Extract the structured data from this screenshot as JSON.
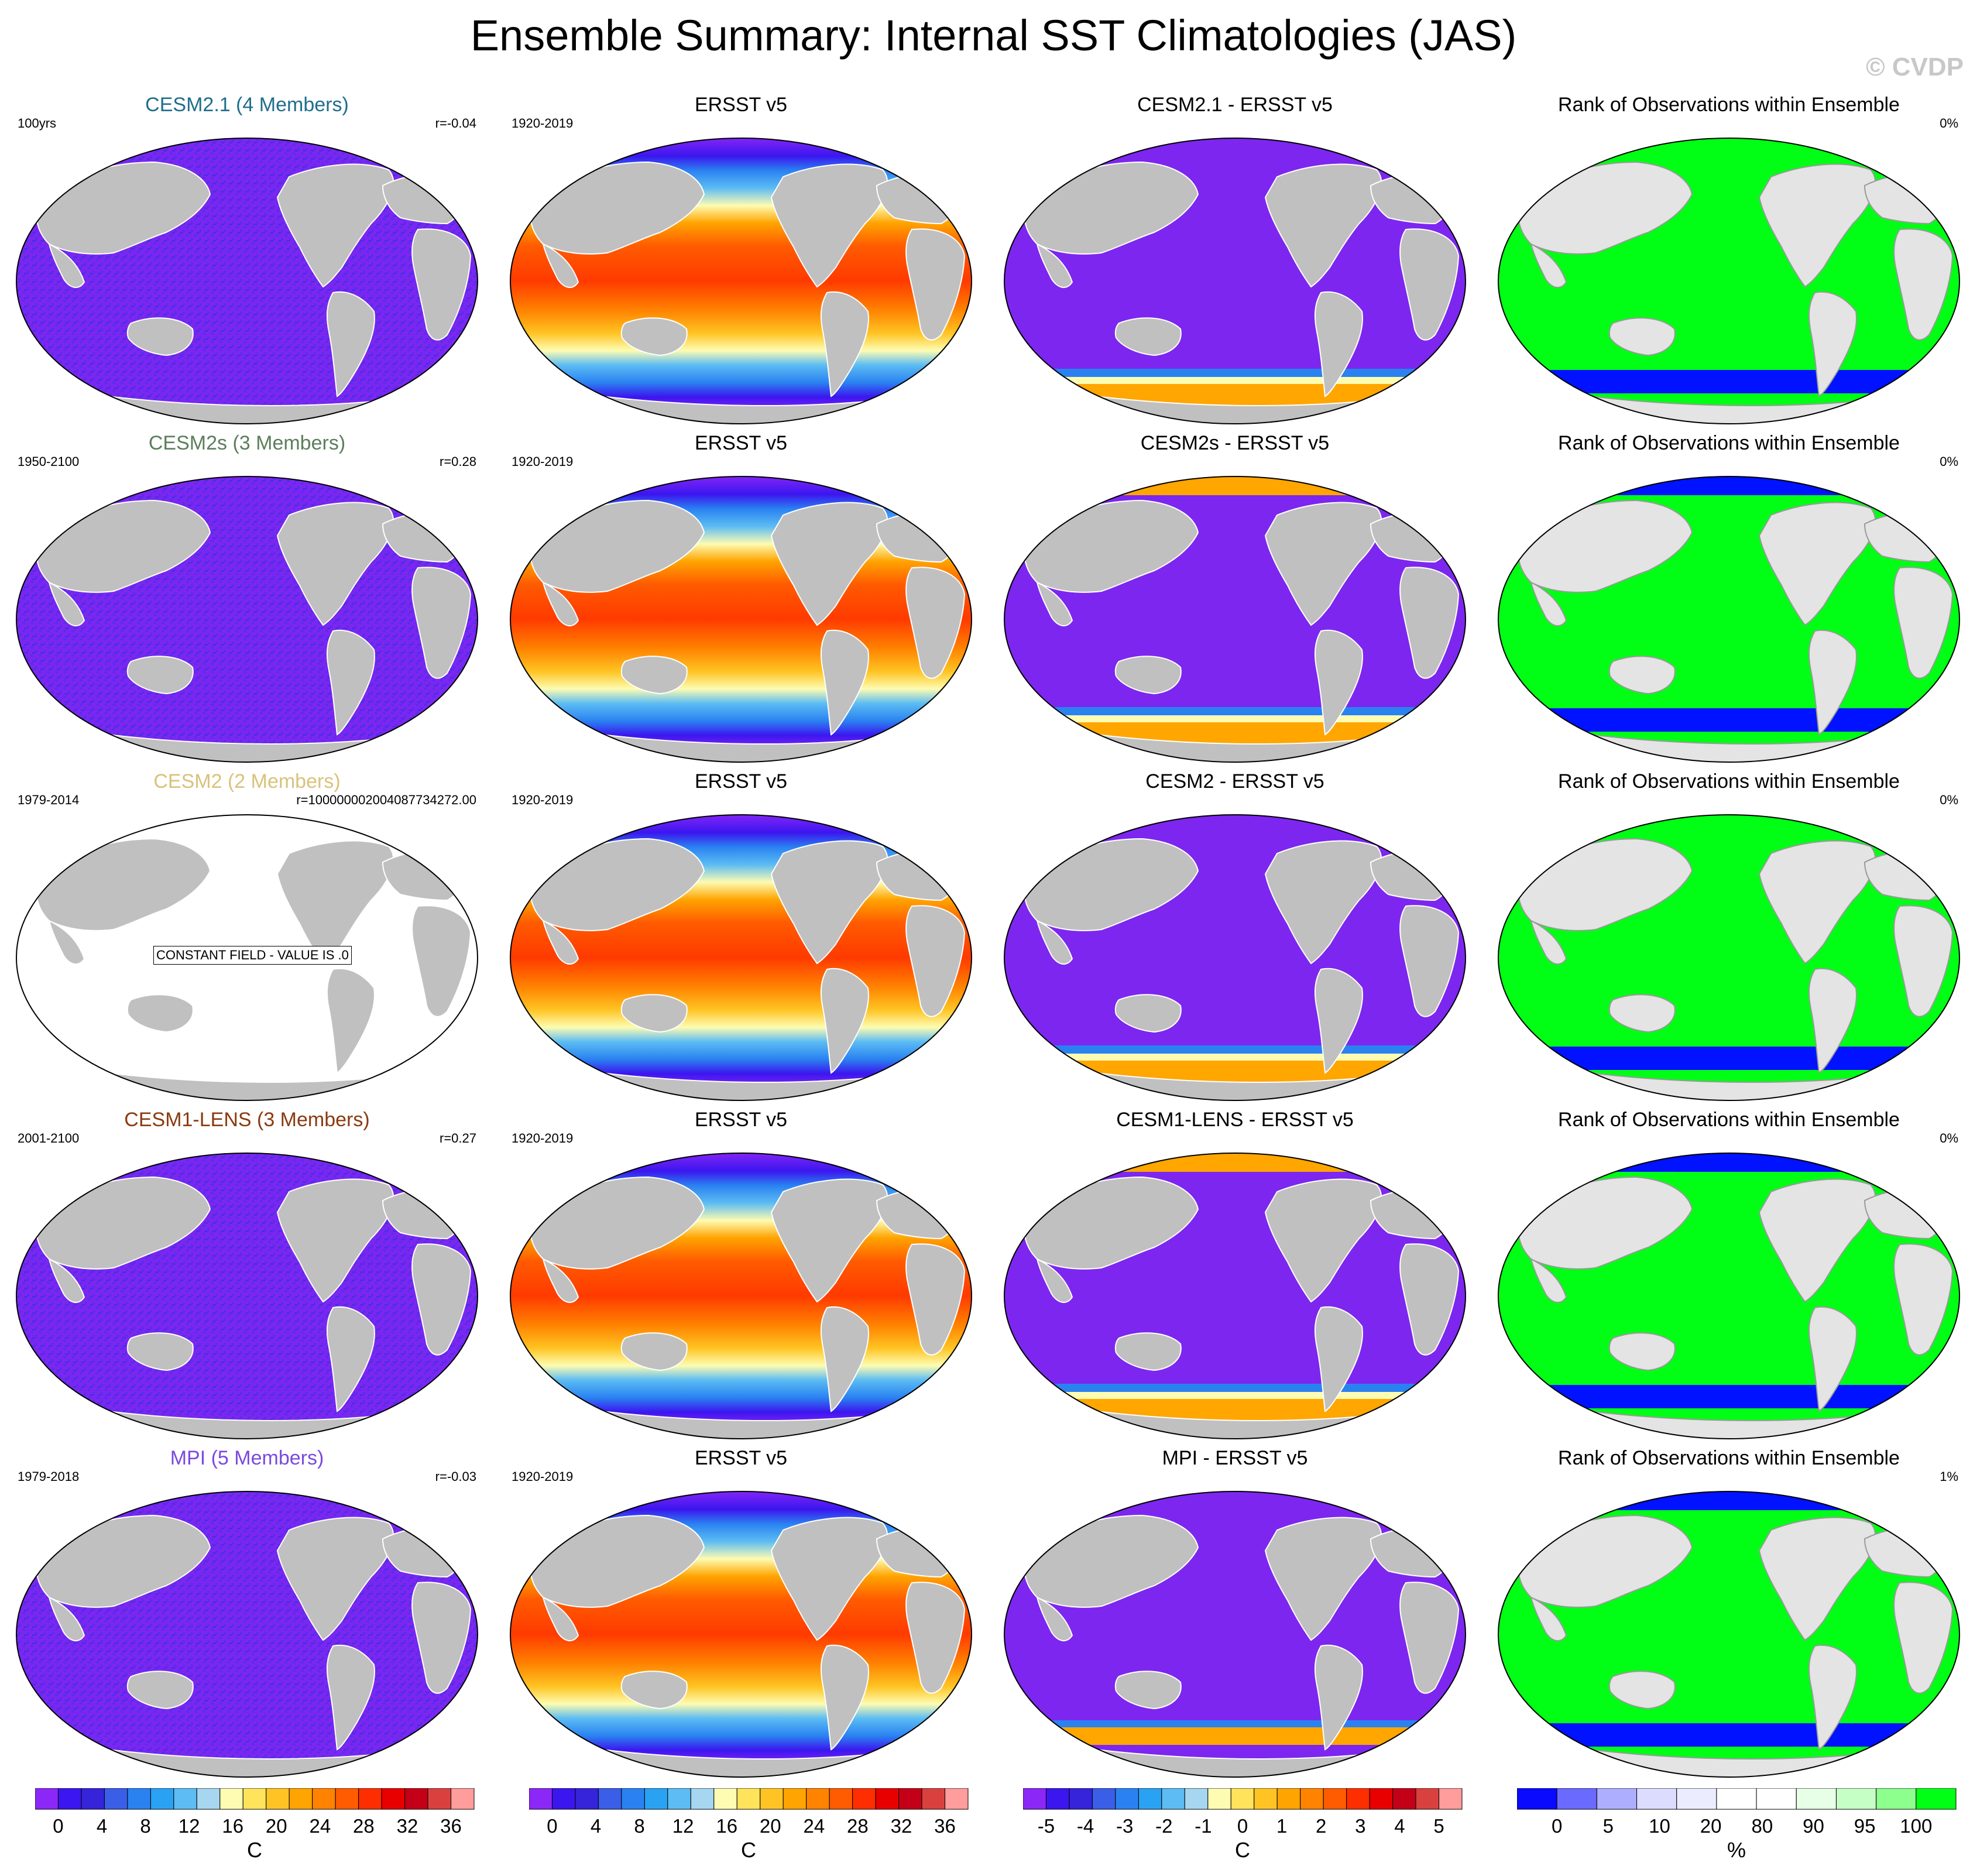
{
  "title": "Ensemble Summary: Internal SST Climatologies (JAS)",
  "watermark": "© CVDP",
  "colors": {
    "land": "#c0c0c0",
    "land_rank": "#e4e4e4",
    "purple": "#7d26f0",
    "purple_dark": "#5a2df0",
    "green": "#00ff14",
    "blue": "#0012ff",
    "orange": "#ffa600"
  },
  "rows": [
    {
      "model": {
        "title": "CESM2.1 (4 Members)",
        "title_color": "#1f6e8c",
        "left": "100yrs",
        "right": "r=-0.04",
        "style": "noise"
      },
      "obs": {
        "title": "ERSST v5",
        "left": "1920-2019"
      },
      "diff": {
        "title": "CESM2.1 - ERSST v5",
        "style": "diff_a"
      },
      "rank": {
        "title": "Rank of Observations within Ensemble",
        "right": "0%"
      }
    },
    {
      "model": {
        "title": "CESM2s (3 Members)",
        "title_color": "#5c7e5c",
        "left": "1950-2100",
        "right": "r=0.28",
        "style": "noise"
      },
      "obs": {
        "title": "ERSST v5",
        "left": "1920-2019"
      },
      "diff": {
        "title": "CESM2s - ERSST v5",
        "style": "diff_b"
      },
      "rank": {
        "title": "Rank of Observations within Ensemble",
        "right": "0%"
      }
    },
    {
      "model": {
        "title": "CESM2 (2 Members)",
        "title_color": "#d9c27a",
        "left": "1979-2014",
        "right": "r=100000002004087734272.00",
        "style": "constant",
        "note": "CONSTANT FIELD - VALUE IS .0"
      },
      "obs": {
        "title": "ERSST v5",
        "left": "1920-2019"
      },
      "diff": {
        "title": "CESM2 - ERSST v5",
        "style": "diff_a"
      },
      "rank": {
        "title": "Rank of Observations within Ensemble",
        "right": "0%"
      }
    },
    {
      "model": {
        "title": "CESM1-LENS (3 Members)",
        "title_color": "#8a3a10",
        "left": "2001-2100",
        "right": "r=0.27",
        "style": "noise"
      },
      "obs": {
        "title": "ERSST v5",
        "left": "1920-2019"
      },
      "diff": {
        "title": "CESM1-LENS - ERSST v5",
        "style": "diff_b"
      },
      "rank": {
        "title": "Rank of Observations within Ensemble",
        "right": "0%"
      }
    },
    {
      "model": {
        "title": "MPI (5 Members)",
        "title_color": "#7a4adf",
        "left": "1979-2018",
        "right": "r=-0.03",
        "style": "noise"
      },
      "obs": {
        "title": "ERSST v5",
        "left": "1920-2019"
      },
      "diff": {
        "title": "MPI - ERSST v5",
        "style": "diff_c"
      },
      "rank": {
        "title": "Rank of Observations within Ensemble",
        "right": "1%"
      }
    }
  ],
  "colorbars": [
    {
      "name": "sst",
      "colors": [
        "#8b27f7",
        "#3b16ef",
        "#3524d9",
        "#3a5ee7",
        "#2a82f1",
        "#2aa2f3",
        "#5cbcf3",
        "#a6d6f0",
        "#fdfcb2",
        "#ffe35a",
        "#ffc423",
        "#ffa400",
        "#ff8200",
        "#ff5b00",
        "#ff2e00",
        "#e80000",
        "#c30017",
        "#d9413f",
        "#ff9c9c"
      ],
      "labels": [
        "0",
        "4",
        "8",
        "12",
        "16",
        "20",
        "24",
        "28",
        "32",
        "36"
      ],
      "unit": "C"
    },
    {
      "name": "sst",
      "colors": [
        "#8b27f7",
        "#3b16ef",
        "#3524d9",
        "#3a5ee7",
        "#2a82f1",
        "#2aa2f3",
        "#5cbcf3",
        "#a6d6f0",
        "#fdfcb2",
        "#ffe35a",
        "#ffc423",
        "#ffa400",
        "#ff8200",
        "#ff5b00",
        "#ff2e00",
        "#e80000",
        "#c30017",
        "#d9413f",
        "#ff9c9c"
      ],
      "labels": [
        "0",
        "4",
        "8",
        "12",
        "16",
        "20",
        "24",
        "28",
        "32",
        "36"
      ],
      "unit": "C"
    },
    {
      "name": "diff",
      "colors": [
        "#8b27f7",
        "#3b16ef",
        "#3524d9",
        "#3a5ee7",
        "#2a82f1",
        "#2aa2f3",
        "#5cbcf3",
        "#a6d6f0",
        "#fdfcb2",
        "#ffe35a",
        "#ffc423",
        "#ffa400",
        "#ff8200",
        "#ff5b00",
        "#ff2e00",
        "#e80000",
        "#c30017",
        "#d9413f",
        "#ff9c9c"
      ],
      "labels": [
        "-5",
        "-4",
        "-3",
        "-2",
        "-1",
        "0",
        "1",
        "2",
        "3",
        "4",
        "5"
      ],
      "unit": "C"
    },
    {
      "name": "rank",
      "colors": [
        "#0a0aff",
        "#6a6aff",
        "#aeaeff",
        "#dcdcff",
        "#ececff",
        "#ffffff",
        "#ffffff",
        "#e6ffe6",
        "#c6ffc6",
        "#8cff8c",
        "#00ff14"
      ],
      "labels": [
        "0",
        "5",
        "10",
        "20",
        "80",
        "90",
        "95",
        "100"
      ],
      "unit": "%"
    }
  ]
}
